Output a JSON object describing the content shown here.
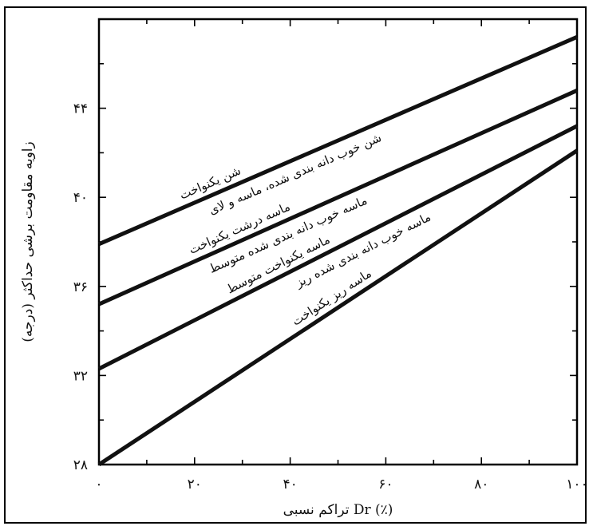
{
  "chart_data": {
    "type": "line",
    "title": "",
    "xlabel": "تراکم نسبی Dr (٪)",
    "ylabel": "زاویه مقاومت برشی حداکثر (درجه)",
    "xlim": [
      0,
      100
    ],
    "ylim": [
      28,
      48
    ],
    "x_ticks": [
      {
        "value": 0,
        "label": "۰"
      },
      {
        "value": 20,
        "label": "۲۰"
      },
      {
        "value": 40,
        "label": "۴۰"
      },
      {
        "value": 60,
        "label": "۶۰"
      },
      {
        "value": 80,
        "label": "۸۰"
      },
      {
        "value": 100,
        "label": "۱۰۰"
      }
    ],
    "y_ticks": [
      {
        "value": 28,
        "label": "۲۸"
      },
      {
        "value": 32,
        "label": "۳۲"
      },
      {
        "value": 36,
        "label": "۳۶"
      },
      {
        "value": 40,
        "label": "۴۰"
      },
      {
        "value": 44,
        "label": "۴۴"
      }
    ],
    "grid": false,
    "legend": "none",
    "series": [
      {
        "name": "شن یکنواخت",
        "x": [
          0,
          100
        ],
        "y": [
          37.9,
          47.2
        ]
      },
      {
        "name": "شن خوب دانه بندی شده، ماسه و لای",
        "x": [
          0,
          100
        ],
        "y": [
          35.2,
          44.8
        ]
      },
      {
        "name": "ماسه درشت یکنواخت",
        "x": [
          0,
          100
        ],
        "y": [
          32.3,
          43.2
        ]
      },
      {
        "name": "ماسه خوب دانه بندی شده متوسط",
        "x": [
          0,
          100
        ],
        "y": [
          28.0,
          42.1
        ]
      }
    ],
    "annotations": [
      {
        "text": "شن یکنواخت",
        "line": 0
      },
      {
        "text": "شن خوب دانه بندی شده، ماسه و لای",
        "line": 0
      },
      {
        "text": "ماسه درشت یکنواخت",
        "line": 1
      },
      {
        "text": "ماسه خوب دانه بندی شده متوسط",
        "line": 1
      },
      {
        "text": "ماسه یکنواخت متوسط",
        "line": 2
      },
      {
        "text": "ماسه خوب دانه بندی شده ریز",
        "line": 2
      },
      {
        "text": "ماسه ریز یکنواخت",
        "line": 3
      }
    ]
  }
}
